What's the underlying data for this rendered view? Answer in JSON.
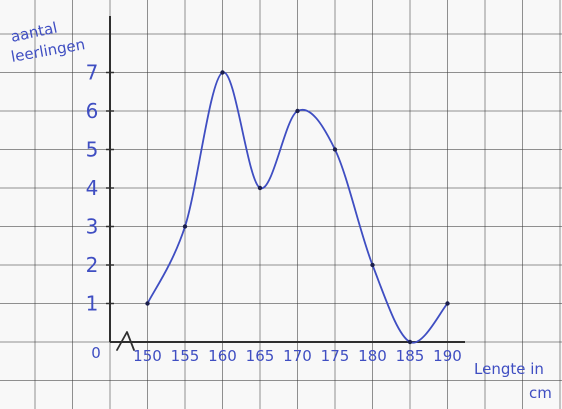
{
  "chart_data": {
    "type": "line",
    "ylabel_lines": [
      "aantal",
      "leerlingen"
    ],
    "xlabel_lines": [
      "Lengte in",
      "cm"
    ],
    "x": [
      150,
      155,
      160,
      165,
      170,
      175,
      180,
      185,
      190
    ],
    "values": [
      1,
      3,
      7,
      4,
      6,
      5,
      2,
      0,
      1
    ],
    "xlim": [
      145,
      190
    ],
    "ylim": [
      0,
      7
    ],
    "x_ticks": [
      "150",
      "155",
      "160",
      "165",
      "170",
      "175",
      "180",
      "185",
      "190"
    ],
    "y_ticks": [
      "1",
      "2",
      "3",
      "4",
      "5",
      "6",
      "7"
    ],
    "origin_label": "0",
    "axis_break": true,
    "grid": true,
    "colors": {
      "line": "#3f4ec2",
      "marker": "#1b1f4d",
      "grid": "#3b3b3b",
      "paper": "#f8f8f8"
    }
  }
}
